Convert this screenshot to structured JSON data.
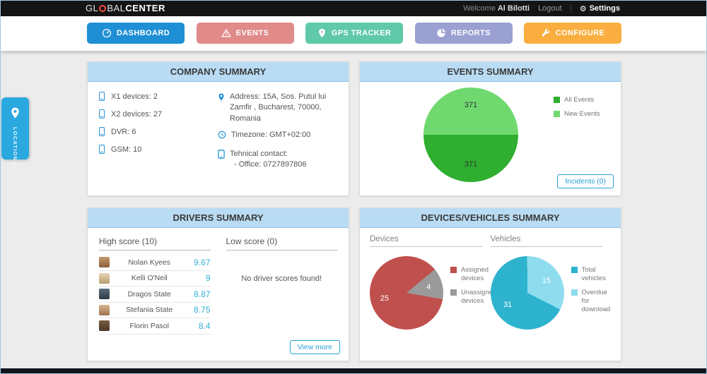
{
  "topbar": {
    "logo_part1": "GL",
    "logo_part2": "BAL",
    "logo_part3": "CENTER",
    "welcome_prefix": "Welcome",
    "user": "Al Bilotti",
    "logout": "Logout",
    "settings": "Settings"
  },
  "icons": {
    "gear": "⚙"
  },
  "nav": {
    "items": [
      {
        "label": "DASHBOARD",
        "color": "#1e8fd5"
      },
      {
        "label": "EVENTS",
        "color": "#e08a8a"
      },
      {
        "label": "GPS TRACKER",
        "color": "#5fc9a9"
      },
      {
        "label": "REPORTS",
        "color": "#9aa0d2"
      },
      {
        "label": "CONFIGURE",
        "color": "#f9ae3f"
      }
    ]
  },
  "locations_tab": {
    "label": "LOCATIONS"
  },
  "panels": {
    "company": {
      "title": "COMPANY SUMMARY",
      "devices": [
        {
          "label": "X1 devices: 2"
        },
        {
          "label": "X2 devices: 27"
        },
        {
          "label": "DVR: 6"
        },
        {
          "label": "GSM: 10"
        }
      ],
      "address": "Address: 15A, Sos. Putul lui Zamfir , Bucharest, 70000, Romania",
      "timezone": "Timezone: GMT+02:00",
      "contact_line1": "Tehnical contact:",
      "contact_line2": "- Office: 0727897806"
    },
    "events": {
      "title": "EVENTS SUMMARY",
      "incidents_button": "Incidents (0)"
    },
    "drivers": {
      "title": "DRIVERS SUMMARY",
      "high_header": "High score (10)",
      "low_header": "Low score (0)",
      "no_scores": "No driver scores found!",
      "view_more": "View more",
      "high_scores": [
        {
          "name": "Nolan Kyees",
          "score": "9.67"
        },
        {
          "name": "Kelli O'Neil",
          "score": "9"
        },
        {
          "name": "Dragos State",
          "score": "8.87"
        },
        {
          "name": "Stefania State",
          "score": "8.75"
        },
        {
          "name": "Florin Pasol",
          "score": "8.4"
        }
      ]
    },
    "devices_vehicles": {
      "title": "DEVICES/VEHICLES SUMMARY",
      "devices_header": "Devices",
      "vehicles_header": "Vehicles"
    }
  },
  "chart_data": [
    {
      "id": "events_pie",
      "type": "pie",
      "title": "Events Summary",
      "rotation": 90,
      "label_color": "#333333",
      "legend_position": "right",
      "slices": [
        {
          "label": "All Events",
          "value": 371,
          "color": "#2fae2f"
        },
        {
          "label": "New Events",
          "value": 371,
          "color": "#6fd96f"
        }
      ]
    },
    {
      "id": "devices_pie",
      "type": "pie",
      "title": "Devices",
      "rotation": 100,
      "label_color": "#ffffff",
      "legend_position": "right",
      "slices": [
        {
          "label": "Assigned devices",
          "value": 25,
          "color": "#c0504d"
        },
        {
          "label": "Unassigned devices",
          "value": 4,
          "color": "#9a9a9a"
        }
      ]
    },
    {
      "id": "vehicles_pie",
      "type": "pie",
      "title": "Vehicles",
      "rotation": 117,
      "label_color": "#ffffff",
      "legend_position": "right",
      "slices": [
        {
          "label": "Total vehicles",
          "value": 31,
          "color": "#2eb3cf"
        },
        {
          "label": "Overdue for download",
          "value": 15,
          "color": "#8fdcee"
        }
      ]
    }
  ]
}
